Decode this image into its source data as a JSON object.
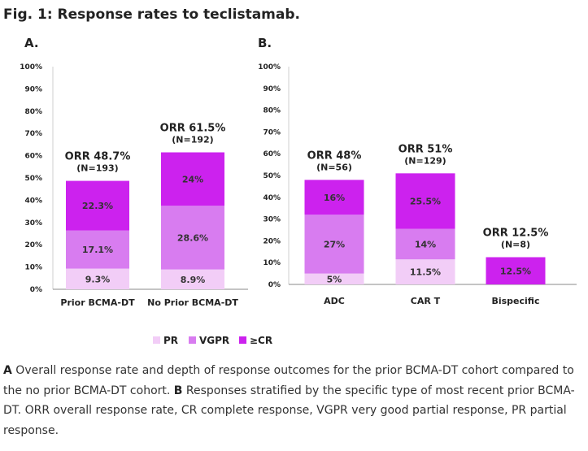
{
  "figure_title": "Fig. 1: Response rates to teclistamab.",
  "caption": {
    "label_a": "A",
    "text_a": " Overall response rate and depth of response outcomes for the prior BCMA-DT cohort compared to the no prior BCMA-DT cohort. ",
    "label_b": "B",
    "text_b": " Responses stratified by the specific type of most recent prior BCMA-DT. ORR overall response rate, CR complete response, VGPR very good partial response, PR partial response."
  },
  "colors": {
    "PR": "#f2cdf7",
    "VGPR": "#d87cf0",
    "CR": "#cc22ee"
  },
  "chart_data": [
    {
      "panel": "A.",
      "type": "stacked-bar",
      "ylim": [
        0,
        100
      ],
      "yticks": [
        "0%",
        "10%",
        "20%",
        "30%",
        "40%",
        "50%",
        "60%",
        "70%",
        "80%",
        "90%",
        "100%"
      ],
      "categories": [
        "Prior BCMA-DT",
        "No Prior BCMA-DT"
      ],
      "series": [
        {
          "name": "PR",
          "values": [
            9.3,
            8.9
          ],
          "labels": [
            "9.3%",
            "8.9%"
          ]
        },
        {
          "name": "VGPR",
          "values": [
            17.1,
            28.6
          ],
          "labels": [
            "17.1%",
            "28.6%"
          ]
        },
        {
          "name": "≥CR",
          "values": [
            22.3,
            24.0
          ],
          "labels": [
            "22.3%",
            "24%"
          ]
        }
      ],
      "annotations": [
        {
          "orr": "ORR 48.7%",
          "n": "(N=193)"
        },
        {
          "orr": "ORR 61.5%",
          "n": "(N=192)"
        }
      ]
    },
    {
      "panel": "B.",
      "type": "stacked-bar",
      "ylim": [
        0,
        100
      ],
      "yticks": [
        "0%",
        "10%",
        "20%",
        "30%",
        "40%",
        "50%",
        "60%",
        "70%",
        "80%",
        "90%",
        "100%"
      ],
      "categories": [
        "ADC",
        "CAR T",
        "Bispecific"
      ],
      "series": [
        {
          "name": "PR",
          "values": [
            5,
            11.5,
            0
          ],
          "labels": [
            "5%",
            "11.5%",
            ""
          ]
        },
        {
          "name": "VGPR",
          "values": [
            27,
            14,
            0
          ],
          "labels": [
            "27%",
            "14%",
            ""
          ]
        },
        {
          "name": "≥CR",
          "values": [
            16,
            25.5,
            12.5
          ],
          "labels": [
            "16%",
            "25.5%",
            "12.5%"
          ]
        }
      ],
      "annotations": [
        {
          "orr": "ORR 48%",
          "n": "(N=56)"
        },
        {
          "orr": "ORR 51%",
          "n": "(N=129)"
        },
        {
          "orr": "ORR 12.5%",
          "n": "(N=8)"
        }
      ]
    }
  ],
  "legend": [
    {
      "label": "PR",
      "color_key": "PR"
    },
    {
      "label": "VGPR",
      "color_key": "VGPR"
    },
    {
      "label": "≥CR",
      "color_key": "CR"
    }
  ]
}
